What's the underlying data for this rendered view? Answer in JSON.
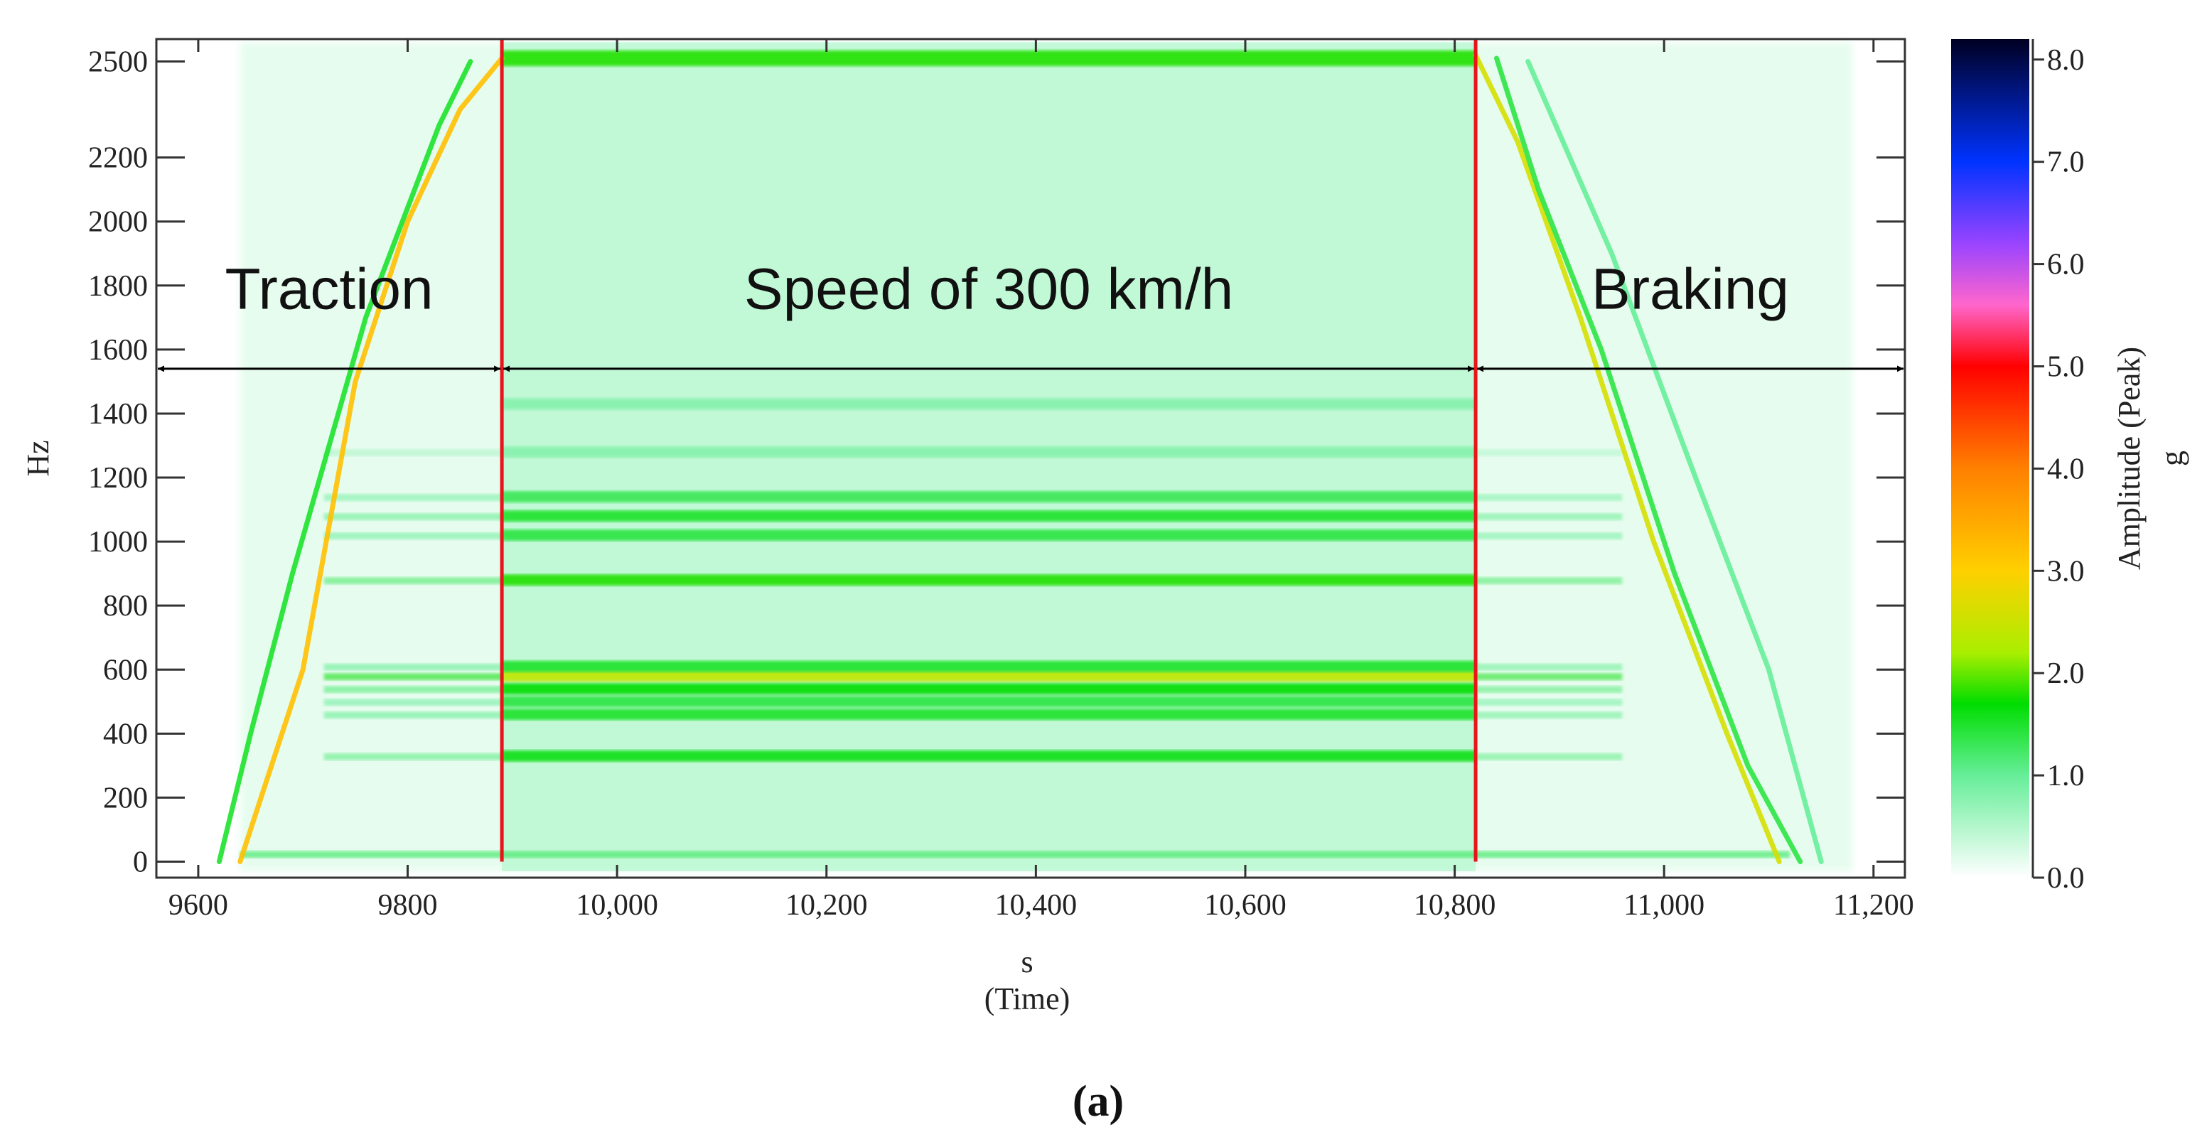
{
  "chart_data": {
    "type": "heatmap",
    "title": "",
    "caption": "(a)",
    "xlabel_unit": "s",
    "xlabel": "(Time)",
    "ylabel": "Hz",
    "xlim": [
      9560,
      11230
    ],
    "ylim": [
      -50,
      2570
    ],
    "x_ticks": [
      9600,
      9800,
      10000,
      10200,
      10400,
      10600,
      10800,
      11000,
      11200
    ],
    "x_tick_labels": [
      "9600",
      "9800",
      "10,000",
      "10,200",
      "10,400",
      "10,600",
      "10,800",
      "11,000",
      "11,200"
    ],
    "y_ticks": [
      0,
      200,
      400,
      600,
      800,
      1000,
      1200,
      1400,
      1600,
      1800,
      2000,
      2200,
      2500
    ],
    "y_tick_labels": [
      "0",
      "200",
      "400",
      "600",
      "800",
      "1000",
      "1200",
      "1400",
      "1600",
      "1800",
      "2000",
      "2200",
      "2500"
    ],
    "colorbar": {
      "title": "Amplitude (Peak)",
      "unit": "g",
      "range": [
        0,
        8.2
      ],
      "ticks": [
        0,
        1,
        2,
        3,
        4,
        5,
        6,
        7,
        8
      ],
      "tick_labels": [
        "0.0",
        "1.0",
        "2.0",
        "3.0",
        "4.0",
        "5.0",
        "6.0",
        "7.0",
        "8.0"
      ],
      "stops": [
        {
          "value": 0.0,
          "color": "#ffffff"
        },
        {
          "value": 1.0,
          "color": "#66ee99"
        },
        {
          "value": 1.7,
          "color": "#00dd00"
        },
        {
          "value": 2.2,
          "color": "#aaee00"
        },
        {
          "value": 3.0,
          "color": "#ffd000"
        },
        {
          "value": 4.0,
          "color": "#ff8000"
        },
        {
          "value": 5.0,
          "color": "#ff0000"
        },
        {
          "value": 5.6,
          "color": "#ff66cc"
        },
        {
          "value": 6.2,
          "color": "#9944ff"
        },
        {
          "value": 7.0,
          "color": "#0033ff"
        },
        {
          "value": 8.2,
          "color": "#000022"
        }
      ]
    },
    "phases": [
      {
        "label": "Traction",
        "start": 9560,
        "end": 9890
      },
      {
        "label": "Speed of 300 km/h",
        "start": 9890,
        "end": 10820
      },
      {
        "label": "Braking",
        "start": 10820,
        "end": 11230
      }
    ],
    "phase_arrow_freq": 1540,
    "boundaries": [
      9890,
      10820
    ],
    "boundary_color": "#e8141a",
    "harmonic_bands": [
      {
        "freq": 330,
        "amplitude": 1.6
      },
      {
        "freq": 460,
        "amplitude": 1.5
      },
      {
        "freq": 500,
        "amplitude": 1.4
      },
      {
        "freq": 540,
        "amplitude": 1.7
      },
      {
        "freq": 580,
        "amplitude": 2.4
      },
      {
        "freq": 610,
        "amplitude": 1.5
      },
      {
        "freq": 880,
        "amplitude": 1.8
      },
      {
        "freq": 1020,
        "amplitude": 1.4
      },
      {
        "freq": 1080,
        "amplitude": 1.5
      },
      {
        "freq": 1140,
        "amplitude": 1.3
      },
      {
        "freq": 1280,
        "amplitude": 0.8
      },
      {
        "freq": 1430,
        "amplitude": 0.8
      },
      {
        "freq": 2510,
        "amplitude": 1.8
      }
    ],
    "sweep_lines": [
      {
        "points": [
          [
            9640,
            0
          ],
          [
            9700,
            600
          ],
          [
            9750,
            1500
          ],
          [
            9800,
            2000
          ],
          [
            9850,
            2350
          ],
          [
            9890,
            2510
          ]
        ],
        "amplitude": 3.2
      },
      {
        "points": [
          [
            9620,
            0
          ],
          [
            9650,
            400
          ],
          [
            9690,
            900
          ],
          [
            9760,
            1700
          ],
          [
            9830,
            2300
          ],
          [
            9860,
            2500
          ]
        ],
        "amplitude": 1.5
      },
      {
        "points": [
          [
            10820,
            2520
          ],
          [
            10860,
            2250
          ],
          [
            10920,
            1700
          ],
          [
            10990,
            1000
          ],
          [
            11060,
            400
          ],
          [
            11110,
            0
          ]
        ],
        "amplitude": 2.6
      },
      {
        "points": [
          [
            10840,
            2510
          ],
          [
            10880,
            2100
          ],
          [
            10940,
            1600
          ],
          [
            11010,
            900
          ],
          [
            11080,
            300
          ],
          [
            11130,
            0
          ]
        ],
        "amplitude": 1.4
      },
      {
        "points": [
          [
            10870,
            2500
          ],
          [
            10950,
            1900
          ],
          [
            11030,
            1200
          ],
          [
            11100,
            600
          ],
          [
            11150,
            0
          ]
        ],
        "amplitude": 1.0
      }
    ]
  }
}
